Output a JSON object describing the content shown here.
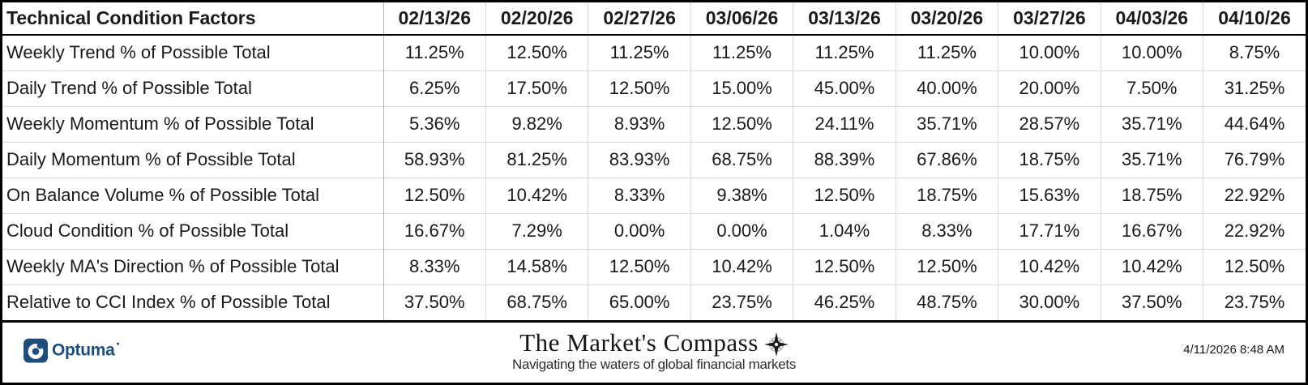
{
  "chart_data": {
    "type": "table",
    "title": "Technical Condition Factors",
    "columns": [
      "02/13/26",
      "02/20/26",
      "02/27/26",
      "03/06/26",
      "03/13/26",
      "03/20/26",
      "03/27/26",
      "04/03/26",
      "04/10/26"
    ],
    "rows": [
      {
        "label": "Weekly Trend % of Possible Total",
        "values": [
          "11.25%",
          "12.50%",
          "11.25%",
          "11.25%",
          "11.25%",
          "11.25%",
          "10.00%",
          "10.00%",
          "8.75%"
        ]
      },
      {
        "label": "Daily Trend % of Possible Total",
        "values": [
          "6.25%",
          "17.50%",
          "12.50%",
          "15.00%",
          "45.00%",
          "40.00%",
          "20.00%",
          "7.50%",
          "31.25%"
        ]
      },
      {
        "label": "Weekly Momentum % of Possible Total",
        "values": [
          "5.36%",
          "9.82%",
          "8.93%",
          "12.50%",
          "24.11%",
          "35.71%",
          "28.57%",
          "35.71%",
          "44.64%"
        ]
      },
      {
        "label": "Daily Momentum % of Possible Total",
        "values": [
          "58.93%",
          "81.25%",
          "83.93%",
          "68.75%",
          "88.39%",
          "67.86%",
          "18.75%",
          "35.71%",
          "76.79%"
        ]
      },
      {
        "label": "On Balance Volume % of Possible Total",
        "values": [
          "12.50%",
          "10.42%",
          "8.33%",
          "9.38%",
          "12.50%",
          "18.75%",
          "15.63%",
          "18.75%",
          "22.92%"
        ]
      },
      {
        "label": "Cloud Condition % of Possible Total",
        "values": [
          "16.67%",
          "7.29%",
          "0.00%",
          "0.00%",
          "1.04%",
          "8.33%",
          "17.71%",
          "16.67%",
          "22.92%"
        ]
      },
      {
        "label": "Weekly MA's Direction % of Possible Total",
        "values": [
          "8.33%",
          "14.58%",
          "12.50%",
          "10.42%",
          "12.50%",
          "12.50%",
          "10.42%",
          "10.42%",
          "12.50%"
        ]
      },
      {
        "label": "Relative to CCI Index % of Possible Total",
        "values": [
          "37.50%",
          "68.75%",
          "65.00%",
          "23.75%",
          "46.25%",
          "48.75%",
          "30.00%",
          "37.50%",
          "23.75%"
        ]
      }
    ]
  },
  "footer": {
    "logo_text": "Optuma",
    "brand_title": "The Market's Compass",
    "brand_tagline": "Navigating the waters of global financial markets",
    "timestamp": "4/11/2026 8:48 AM",
    "icons": {
      "optuma_mark": "optuma-logo-icon",
      "compass": "compass-rose-icon"
    }
  },
  "colors": {
    "optuma_navy": "#1d4e7e",
    "grid_light": "#d9d9d9",
    "grid_medium": "#b3b3b3",
    "border": "#000000",
    "text": "#1a1a1a",
    "tagline_gray": "#2e2e2e"
  }
}
